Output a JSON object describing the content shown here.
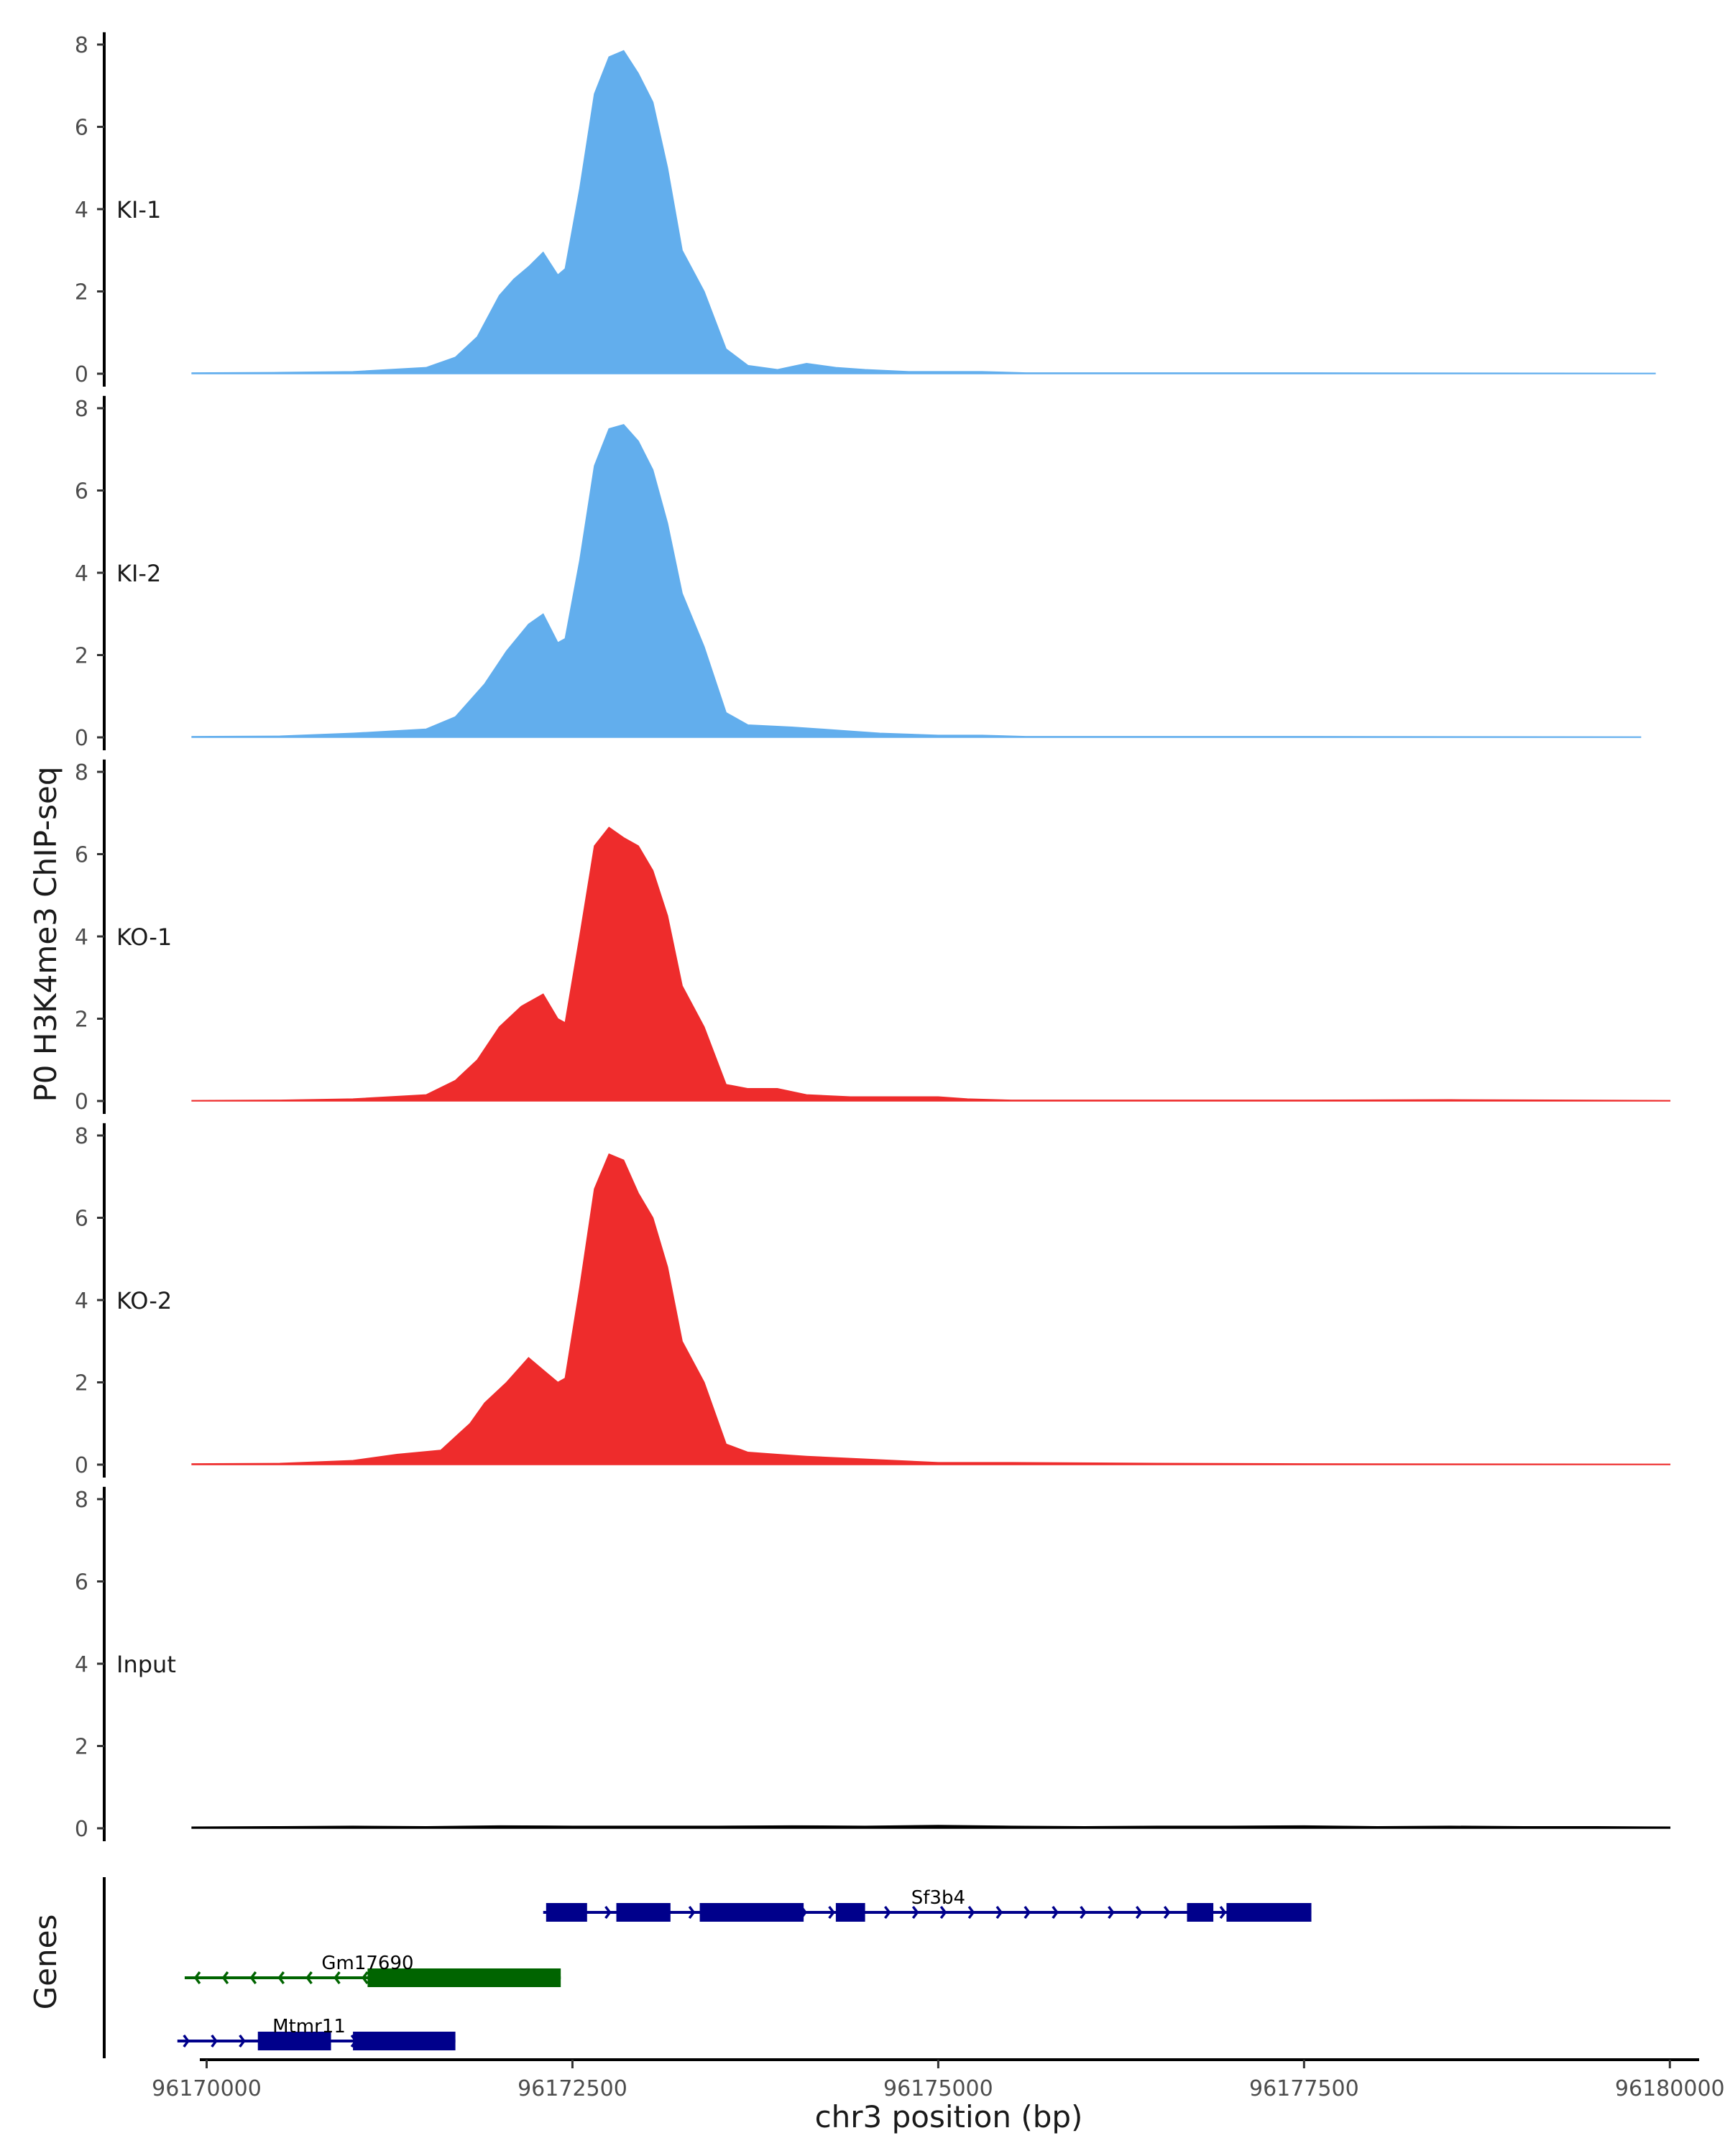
{
  "chart_data": {
    "type": "area",
    "ylabel": "P0 H3K4me3 ChIP-seq",
    "xlabel": "chr3 position (bp)",
    "genes_axis_label": "Genes",
    "x_range": [
      96169300,
      96180200
    ],
    "ylim": [
      0,
      8.3
    ],
    "y_ticks": [
      0,
      2,
      4,
      6,
      8
    ],
    "x_ticks": [
      96170000,
      96172500,
      96175000,
      96177500,
      96180000
    ],
    "x_tick_labels": [
      "96170000",
      "96172500",
      "96175000",
      "96177500",
      "96180000"
    ],
    "grid": false,
    "colors": {
      "KI": "#62aeed",
      "KO": "#ee2c2c",
      "Input": "#000000",
      "gene_plus": "#00008b",
      "gene_minus": "#006400"
    },
    "series": [
      {
        "name": "KI-1",
        "color": "#62aeed",
        "points": [
          [
            96169900,
            0.02
          ],
          [
            96170500,
            0.03
          ],
          [
            96171000,
            0.05
          ],
          [
            96171500,
            0.15
          ],
          [
            96171700,
            0.4
          ],
          [
            96171850,
            0.9
          ],
          [
            96172000,
            1.9
          ],
          [
            96172100,
            2.3
          ],
          [
            96172200,
            2.6
          ],
          [
            96172300,
            2.95
          ],
          [
            96172400,
            2.4
          ],
          [
            96172450,
            2.55
          ],
          [
            96172550,
            4.5
          ],
          [
            96172650,
            6.8
          ],
          [
            96172750,
            7.7
          ],
          [
            96172850,
            7.85
          ],
          [
            96172950,
            7.3
          ],
          [
            96173050,
            6.6
          ],
          [
            96173150,
            5.0
          ],
          [
            96173250,
            3.0
          ],
          [
            96173400,
            2.0
          ],
          [
            96173550,
            0.6
          ],
          [
            96173700,
            0.2
          ],
          [
            96173900,
            0.1
          ],
          [
            96174100,
            0.25
          ],
          [
            96174300,
            0.15
          ],
          [
            96174500,
            0.1
          ],
          [
            96174800,
            0.05
          ],
          [
            96175300,
            0.05
          ],
          [
            96175600,
            0.02
          ],
          [
            96176000,
            0.02
          ],
          [
            96177500,
            0.02
          ],
          [
            96179900,
            0.01
          ]
        ]
      },
      {
        "name": "KI-2",
        "color": "#62aeed",
        "points": [
          [
            96169900,
            0.02
          ],
          [
            96170500,
            0.03
          ],
          [
            96171000,
            0.1
          ],
          [
            96171500,
            0.2
          ],
          [
            96171700,
            0.5
          ],
          [
            96171900,
            1.3
          ],
          [
            96172050,
            2.1
          ],
          [
            96172200,
            2.75
          ],
          [
            96172300,
            3.0
          ],
          [
            96172400,
            2.3
          ],
          [
            96172450,
            2.4
          ],
          [
            96172550,
            4.3
          ],
          [
            96172650,
            6.6
          ],
          [
            96172750,
            7.5
          ],
          [
            96172850,
            7.6
          ],
          [
            96172950,
            7.2
          ],
          [
            96173050,
            6.5
          ],
          [
            96173150,
            5.2
          ],
          [
            96173250,
            3.5
          ],
          [
            96173400,
            2.2
          ],
          [
            96173550,
            0.6
          ],
          [
            96173700,
            0.3
          ],
          [
            96174000,
            0.25
          ],
          [
            96174200,
            0.2
          ],
          [
            96174400,
            0.15
          ],
          [
            96174600,
            0.1
          ],
          [
            96175000,
            0.05
          ],
          [
            96175300,
            0.05
          ],
          [
            96175600,
            0.02
          ],
          [
            96176000,
            0.02
          ],
          [
            96177500,
            0.02
          ],
          [
            96179800,
            0.01
          ]
        ]
      },
      {
        "name": "KO-1",
        "color": "#ee2c2c",
        "points": [
          [
            96169900,
            0.01
          ],
          [
            96170500,
            0.02
          ],
          [
            96171000,
            0.05
          ],
          [
            96171500,
            0.15
          ],
          [
            96171700,
            0.5
          ],
          [
            96171850,
            1.0
          ],
          [
            96172000,
            1.8
          ],
          [
            96172150,
            2.3
          ],
          [
            96172300,
            2.6
          ],
          [
            96172400,
            2.0
          ],
          [
            96172450,
            1.9
          ],
          [
            96172550,
            4.0
          ],
          [
            96172650,
            6.2
          ],
          [
            96172750,
            6.65
          ],
          [
            96172850,
            6.4
          ],
          [
            96172950,
            6.2
          ],
          [
            96173050,
            5.6
          ],
          [
            96173150,
            4.5
          ],
          [
            96173250,
            2.8
          ],
          [
            96173400,
            1.8
          ],
          [
            96173550,
            0.4
          ],
          [
            96173700,
            0.3
          ],
          [
            96173900,
            0.3
          ],
          [
            96174100,
            0.15
          ],
          [
            96174400,
            0.1
          ],
          [
            96174700,
            0.1
          ],
          [
            96175000,
            0.1
          ],
          [
            96175200,
            0.05
          ],
          [
            96175500,
            0.02
          ],
          [
            96176500,
            0.02
          ],
          [
            96177500,
            0.02
          ],
          [
            96178500,
            0.03
          ],
          [
            96180000,
            0.01
          ]
        ]
      },
      {
        "name": "KO-2",
        "color": "#ee2c2c",
        "points": [
          [
            96169900,
            0.02
          ],
          [
            96170500,
            0.03
          ],
          [
            96171000,
            0.1
          ],
          [
            96171300,
            0.25
          ],
          [
            96171600,
            0.35
          ],
          [
            96171800,
            1.0
          ],
          [
            96171900,
            1.5
          ],
          [
            96172050,
            2.0
          ],
          [
            96172200,
            2.6
          ],
          [
            96172300,
            2.3
          ],
          [
            96172400,
            2.0
          ],
          [
            96172450,
            2.1
          ],
          [
            96172550,
            4.3
          ],
          [
            96172650,
            6.7
          ],
          [
            96172750,
            7.55
          ],
          [
            96172850,
            7.4
          ],
          [
            96172950,
            6.6
          ],
          [
            96173050,
            6.0
          ],
          [
            96173150,
            4.8
          ],
          [
            96173250,
            3.0
          ],
          [
            96173400,
            2.0
          ],
          [
            96173550,
            0.5
          ],
          [
            96173700,
            0.3
          ],
          [
            96173900,
            0.25
          ],
          [
            96174100,
            0.2
          ],
          [
            96174400,
            0.15
          ],
          [
            96174700,
            0.1
          ],
          [
            96175000,
            0.05
          ],
          [
            96175500,
            0.05
          ],
          [
            96176500,
            0.03
          ],
          [
            96177500,
            0.02
          ],
          [
            96180000,
            0.01
          ]
        ]
      },
      {
        "name": "Input",
        "color": "#000000",
        "points": [
          [
            96169900,
            0.03
          ],
          [
            96170500,
            0.04
          ],
          [
            96171000,
            0.05
          ],
          [
            96171500,
            0.04
          ],
          [
            96172000,
            0.06
          ],
          [
            96172500,
            0.05
          ],
          [
            96173000,
            0.05
          ],
          [
            96173500,
            0.05
          ],
          [
            96174000,
            0.06
          ],
          [
            96174500,
            0.05
          ],
          [
            96175000,
            0.07
          ],
          [
            96175500,
            0.05
          ],
          [
            96176000,
            0.04
          ],
          [
            96176500,
            0.05
          ],
          [
            96177000,
            0.05
          ],
          [
            96177500,
            0.06
          ],
          [
            96178000,
            0.04
          ],
          [
            96178500,
            0.05
          ],
          [
            96179000,
            0.04
          ],
          [
            96179500,
            0.04
          ],
          [
            96180000,
            0.03
          ]
        ]
      }
    ],
    "genes": [
      {
        "name": "Sf3b4",
        "strand": "+",
        "color": "#00008b",
        "start": 96172300,
        "end": 96177550,
        "exons": [
          [
            96172320,
            96172600
          ],
          [
            96172800,
            96173170
          ],
          [
            96173370,
            96174080
          ],
          [
            96174300,
            96174500
          ],
          [
            96176700,
            96176880
          ],
          [
            96176970,
            96177550
          ]
        ],
        "label_x": 96175000,
        "row": 0
      },
      {
        "name": "Gm17690",
        "strand": "-",
        "color": "#006400",
        "start": 96169850,
        "end": 96172420,
        "exons": [
          [
            96171100,
            96172420
          ]
        ],
        "label_x": 96171100,
        "row": 1
      },
      {
        "name": "Mtmr11",
        "strand": "+",
        "color": "#00008b",
        "start": 96169800,
        "end": 96171700,
        "exons": [
          [
            96170350,
            96170850
          ],
          [
            96171000,
            96171700
          ]
        ],
        "label_x": 96170700,
        "row": 2
      }
    ]
  }
}
